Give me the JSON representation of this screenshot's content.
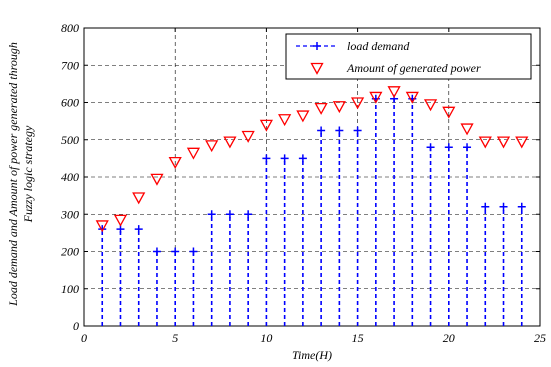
{
  "chart_data": {
    "type": "stem+scatter",
    "xlabel": "Time(H)",
    "ylabel_lines": [
      "Load demand and Amount of power generated through",
      "Fuzzy logic strategy"
    ],
    "xlim": [
      0,
      25
    ],
    "ylim": [
      0,
      800
    ],
    "xticks": [
      0,
      5,
      10,
      15,
      20,
      25
    ],
    "yticks": [
      0,
      100,
      200,
      300,
      400,
      500,
      600,
      700,
      800
    ],
    "grid": true,
    "legend_position": "top-right",
    "x": [
      1,
      2,
      3,
      4,
      5,
      6,
      7,
      8,
      9,
      10,
      11,
      12,
      13,
      14,
      15,
      16,
      17,
      18,
      19,
      20,
      21,
      22,
      23,
      24
    ],
    "series": [
      {
        "name": "load demand",
        "style": "stem",
        "color": "#0000ff",
        "marker": "plus",
        "values": [
          260,
          260,
          260,
          200,
          200,
          200,
          300,
          300,
          300,
          450,
          450,
          450,
          525,
          525,
          525,
          610,
          610,
          610,
          480,
          480,
          480,
          320,
          320,
          320
        ]
      },
      {
        "name": "Amount of generated power",
        "style": "markers",
        "color": "#ff0000",
        "marker": "triangle-down",
        "values": [
          270,
          285,
          345,
          395,
          440,
          465,
          485,
          495,
          510,
          540,
          555,
          565,
          585,
          590,
          600,
          615,
          630,
          615,
          595,
          575,
          530,
          495,
          495,
          495
        ]
      }
    ]
  }
}
